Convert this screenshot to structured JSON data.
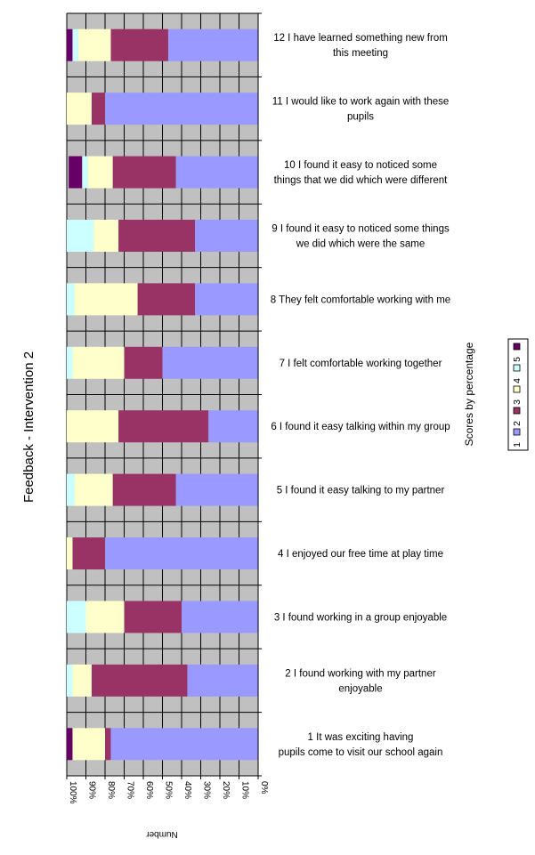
{
  "chart_data": {
    "type": "bar",
    "orientation": "horizontal-stacked-percent",
    "title": "Feedback - Intervention 2",
    "xlabel": "Number",
    "legend_title": "Scores by percentage",
    "xlim": [
      0,
      100
    ],
    "x_ticks": [
      "0%",
      "10%",
      "20%",
      "30%",
      "40%",
      "50%",
      "60%",
      "70%",
      "80%",
      "90%",
      "100%"
    ],
    "grid": true,
    "legend_position": "right",
    "categories": [
      [
        "1 It was exciting having",
        "pupils come to visit our school again"
      ],
      [
        "2 I found working with my partner",
        "enjoyable"
      ],
      [
        "3 I found working in a group enjoyable"
      ],
      [
        "4 I enjoyed our free time at play time"
      ],
      [
        "5 I found it easy talking to my partner"
      ],
      [
        "6 I found it easy talking within my group"
      ],
      [
        "7 I felt comfortable working together"
      ],
      [
        "8 They felt comfortable working with me"
      ],
      [
        "9 I found it easy to noticed some things",
        "we did which were the same"
      ],
      [
        "10  I found it easy to noticed some",
        "things that we did which were different"
      ],
      [
        "11 I would like to work again with these",
        "pupils"
      ],
      [
        "12 I have learned something new from",
        "this meeting"
      ]
    ],
    "series": [
      {
        "name": "1",
        "color": "#9999ff",
        "values": [
          77,
          37,
          40,
          80,
          43,
          26,
          50,
          33,
          33,
          43,
          80,
          47
        ]
      },
      {
        "name": "2",
        "color": "#993366",
        "values": [
          3,
          50,
          30,
          17,
          33,
          47,
          20,
          30,
          40,
          33,
          7,
          30
        ]
      },
      {
        "name": "3",
        "color": "#ffffcc",
        "values": [
          17,
          10,
          20,
          3,
          20,
          27,
          27,
          33,
          13,
          13,
          13,
          17
        ]
      },
      {
        "name": "4",
        "color": "#ccffff",
        "values": [
          0,
          3,
          10,
          0,
          4,
          0,
          3,
          4,
          14,
          3,
          0,
          3
        ]
      },
      {
        "name": "5",
        "color": "#660066",
        "values": [
          3,
          0,
          0,
          0,
          0,
          0,
          0,
          0,
          0,
          7,
          0,
          3
        ]
      }
    ]
  }
}
